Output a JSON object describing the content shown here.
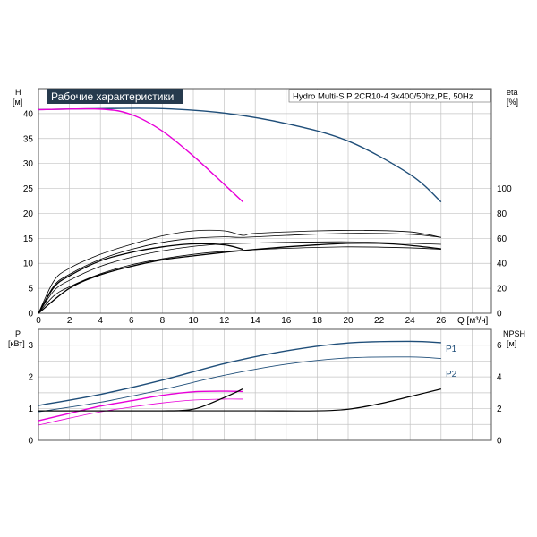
{
  "title_badge": "Рабочие характеристики",
  "pump_label": "Hydro Multi-S P 2CR10-4 3x400/50hz,PE, 50Hz",
  "colors": {
    "blue": "#1f4e79",
    "magenta": "#e800d8",
    "black": "#000000",
    "grid": "#bdbdbd",
    "badge_bg": "#263a4d"
  },
  "chart_data": [
    {
      "type": "line",
      "name": "upper",
      "y_left_label": "H",
      "y_left_unit": "[м]",
      "y_right_label": "eta",
      "y_right_unit": "[%]",
      "x_label": "Q [м³/ч]",
      "xlim": [
        0,
        29
      ],
      "ylim_left": [
        0,
        45
      ],
      "ylim_right_ticks": [
        0,
        20,
        40,
        60,
        80,
        100
      ],
      "x_ticks": [
        0,
        2,
        4,
        6,
        8,
        10,
        12,
        14,
        16,
        18,
        20,
        22,
        24,
        26
      ],
      "y_left_ticks": [
        0,
        5,
        10,
        15,
        20,
        25,
        30,
        35,
        40
      ],
      "grid": true,
      "series": [
        {
          "role": "H_pump",
          "color": "#1f4e79",
          "width": 1.4,
          "points": [
            [
              0,
              40.8
            ],
            [
              4,
              41.0
            ],
            [
              8,
              41.0
            ],
            [
              12,
              40.1
            ],
            [
              16,
              38.0
            ],
            [
              20,
              34.5
            ],
            [
              24,
              27.8
            ],
            [
              26,
              22.3
            ]
          ]
        },
        {
          "role": "H_system",
          "color": "#e800d8",
          "width": 1.4,
          "points": [
            [
              0,
              40.8
            ],
            [
              4,
              40.9
            ],
            [
              6,
              39.8
            ],
            [
              8,
              36.5
            ],
            [
              10,
              31.5
            ],
            [
              12,
              25.8
            ],
            [
              13.2,
              22.3
            ]
          ]
        },
        {
          "role": "eta_thin_1",
          "color": "#000000",
          "width": 0.8,
          "points": [
            [
              0,
              0
            ],
            [
              1,
              6.5
            ],
            [
              2,
              9.0
            ],
            [
              4,
              11.8
            ],
            [
              6,
              13.8
            ],
            [
              8,
              15.5
            ],
            [
              10,
              16.5
            ],
            [
              12,
              16.5
            ],
            [
              13.2,
              15.6
            ],
            [
              14,
              16.0
            ],
            [
              18,
              16.5
            ],
            [
              21,
              16.6
            ],
            [
              24,
              16.3
            ],
            [
              26,
              15.2
            ]
          ]
        },
        {
          "role": "eta_thin_2",
          "color": "#000000",
          "width": 0.8,
          "points": [
            [
              0,
              0
            ],
            [
              1,
              5.5
            ],
            [
              2,
              7.8
            ],
            [
              4,
              10.8
            ],
            [
              6,
              12.8
            ],
            [
              8,
              14.2
            ],
            [
              10,
              15.0
            ],
            [
              12,
              15.3
            ],
            [
              13.2,
              15.2
            ],
            [
              16,
              15.6
            ],
            [
              20,
              16.0
            ],
            [
              24,
              15.8
            ],
            [
              26,
              15.2
            ]
          ]
        },
        {
          "role": "eta_thin_3",
          "color": "#000000",
          "width": 0.8,
          "points": [
            [
              0,
              0
            ],
            [
              1,
              4.5
            ],
            [
              2,
              6.6
            ],
            [
              4,
              9.4
            ],
            [
              6,
              11.2
            ],
            [
              8,
              12.5
            ],
            [
              10,
              13.4
            ],
            [
              12,
              13.9
            ],
            [
              13.2,
              14.0
            ],
            [
              16,
              14.2
            ],
            [
              20,
              14.3
            ],
            [
              24,
              14.0
            ],
            [
              26,
              13.8
            ]
          ]
        },
        {
          "role": "eta_thin_4",
          "color": "#000000",
          "width": 0.8,
          "points": [
            [
              0,
              0
            ],
            [
              1,
              3.5
            ],
            [
              2,
              5.3
            ],
            [
              4,
              7.9
            ],
            [
              6,
              9.7
            ],
            [
              8,
              10.9
            ],
            [
              10,
              11.8
            ],
            [
              12,
              12.4
            ],
            [
              13.2,
              12.6
            ],
            [
              16,
              13.0
            ],
            [
              20,
              13.3
            ],
            [
              24,
              13.1
            ],
            [
              26,
              12.8
            ]
          ]
        },
        {
          "role": "eta_main_short",
          "color": "#000000",
          "width": 1.3,
          "points": [
            [
              0,
              0
            ],
            [
              1,
              5.2
            ],
            [
              2,
              7.5
            ],
            [
              4,
              10.5
            ],
            [
              6,
              12.2
            ],
            [
              8,
              13.3
            ],
            [
              10,
              13.9
            ],
            [
              12,
              13.7
            ],
            [
              13.2,
              12.8
            ]
          ]
        },
        {
          "role": "eta_main_long",
          "color": "#000000",
          "width": 1.3,
          "points": [
            [
              0,
              0
            ],
            [
              2,
              5.0
            ],
            [
              4,
              7.7
            ],
            [
              6,
              9.4
            ],
            [
              8,
              10.7
            ],
            [
              10,
              11.5
            ],
            [
              12,
              12.2
            ],
            [
              14,
              12.8
            ],
            [
              16,
              13.3
            ],
            [
              18,
              13.7
            ],
            [
              20,
              14.0
            ],
            [
              22,
              14.0
            ],
            [
              24,
              13.6
            ],
            [
              26,
              12.9
            ]
          ]
        }
      ]
    },
    {
      "type": "line",
      "name": "lower",
      "y_left_label": "P",
      "y_left_unit": "[кВт]",
      "y_right_label": "NPSH",
      "y_right_unit": "[м]",
      "xlim": [
        0,
        29
      ],
      "ylim_left": [
        0,
        3.5
      ],
      "y_left_ticks": [
        0,
        1,
        2,
        3
      ],
      "y_right_ticks": [
        0,
        2,
        4,
        6
      ],
      "grid": true,
      "curve_labels": [
        "P1",
        "P2"
      ],
      "series": [
        {
          "role": "P1",
          "color": "#1f4e79",
          "width": 1.4,
          "points": [
            [
              0,
              1.1
            ],
            [
              4,
              1.45
            ],
            [
              8,
              1.9
            ],
            [
              12,
              2.42
            ],
            [
              16,
              2.82
            ],
            [
              20,
              3.07
            ],
            [
              24,
              3.12
            ],
            [
              26,
              3.08
            ]
          ]
        },
        {
          "role": "P2",
          "color": "#1f4e79",
          "width": 0.9,
          "points": [
            [
              0,
              0.9
            ],
            [
              4,
              1.2
            ],
            [
              8,
              1.6
            ],
            [
              12,
              2.05
            ],
            [
              16,
              2.4
            ],
            [
              20,
              2.6
            ],
            [
              24,
              2.63
            ],
            [
              26,
              2.58
            ]
          ]
        },
        {
          "role": "P_mag_1",
          "color": "#e800d8",
          "width": 1.4,
          "points": [
            [
              0,
              0.62
            ],
            [
              2,
              0.85
            ],
            [
              4,
              1.08
            ],
            [
              6,
              1.25
            ],
            [
              8,
              1.42
            ],
            [
              10,
              1.53
            ],
            [
              12,
              1.55
            ],
            [
              13.2,
              1.54
            ]
          ]
        },
        {
          "role": "P_mag_2",
          "color": "#e800d8",
          "width": 0.8,
          "points": [
            [
              0,
              0.48
            ],
            [
              2,
              0.7
            ],
            [
              4,
              0.9
            ],
            [
              6,
              1.05
            ],
            [
              8,
              1.18
            ],
            [
              10,
              1.27
            ],
            [
              12,
              1.3
            ],
            [
              13.2,
              1.3
            ]
          ]
        },
        {
          "role": "NPSH_system",
          "color": "#000000",
          "width": 1.2,
          "points": [
            [
              0,
              0.93
            ],
            [
              4,
              0.93
            ],
            [
              8,
              0.93
            ],
            [
              9.5,
              0.95
            ],
            [
              10.5,
              1.05
            ],
            [
              12,
              1.35
            ],
            [
              13.2,
              1.62
            ]
          ]
        },
        {
          "role": "NPSH_pump",
          "color": "#000000",
          "width": 1.2,
          "points": [
            [
              0,
              0.93
            ],
            [
              8,
              0.93
            ],
            [
              14,
              0.93
            ],
            [
              18,
              0.93
            ],
            [
              20,
              0.98
            ],
            [
              22,
              1.15
            ],
            [
              24,
              1.38
            ],
            [
              26,
              1.62
            ]
          ]
        }
      ]
    }
  ]
}
